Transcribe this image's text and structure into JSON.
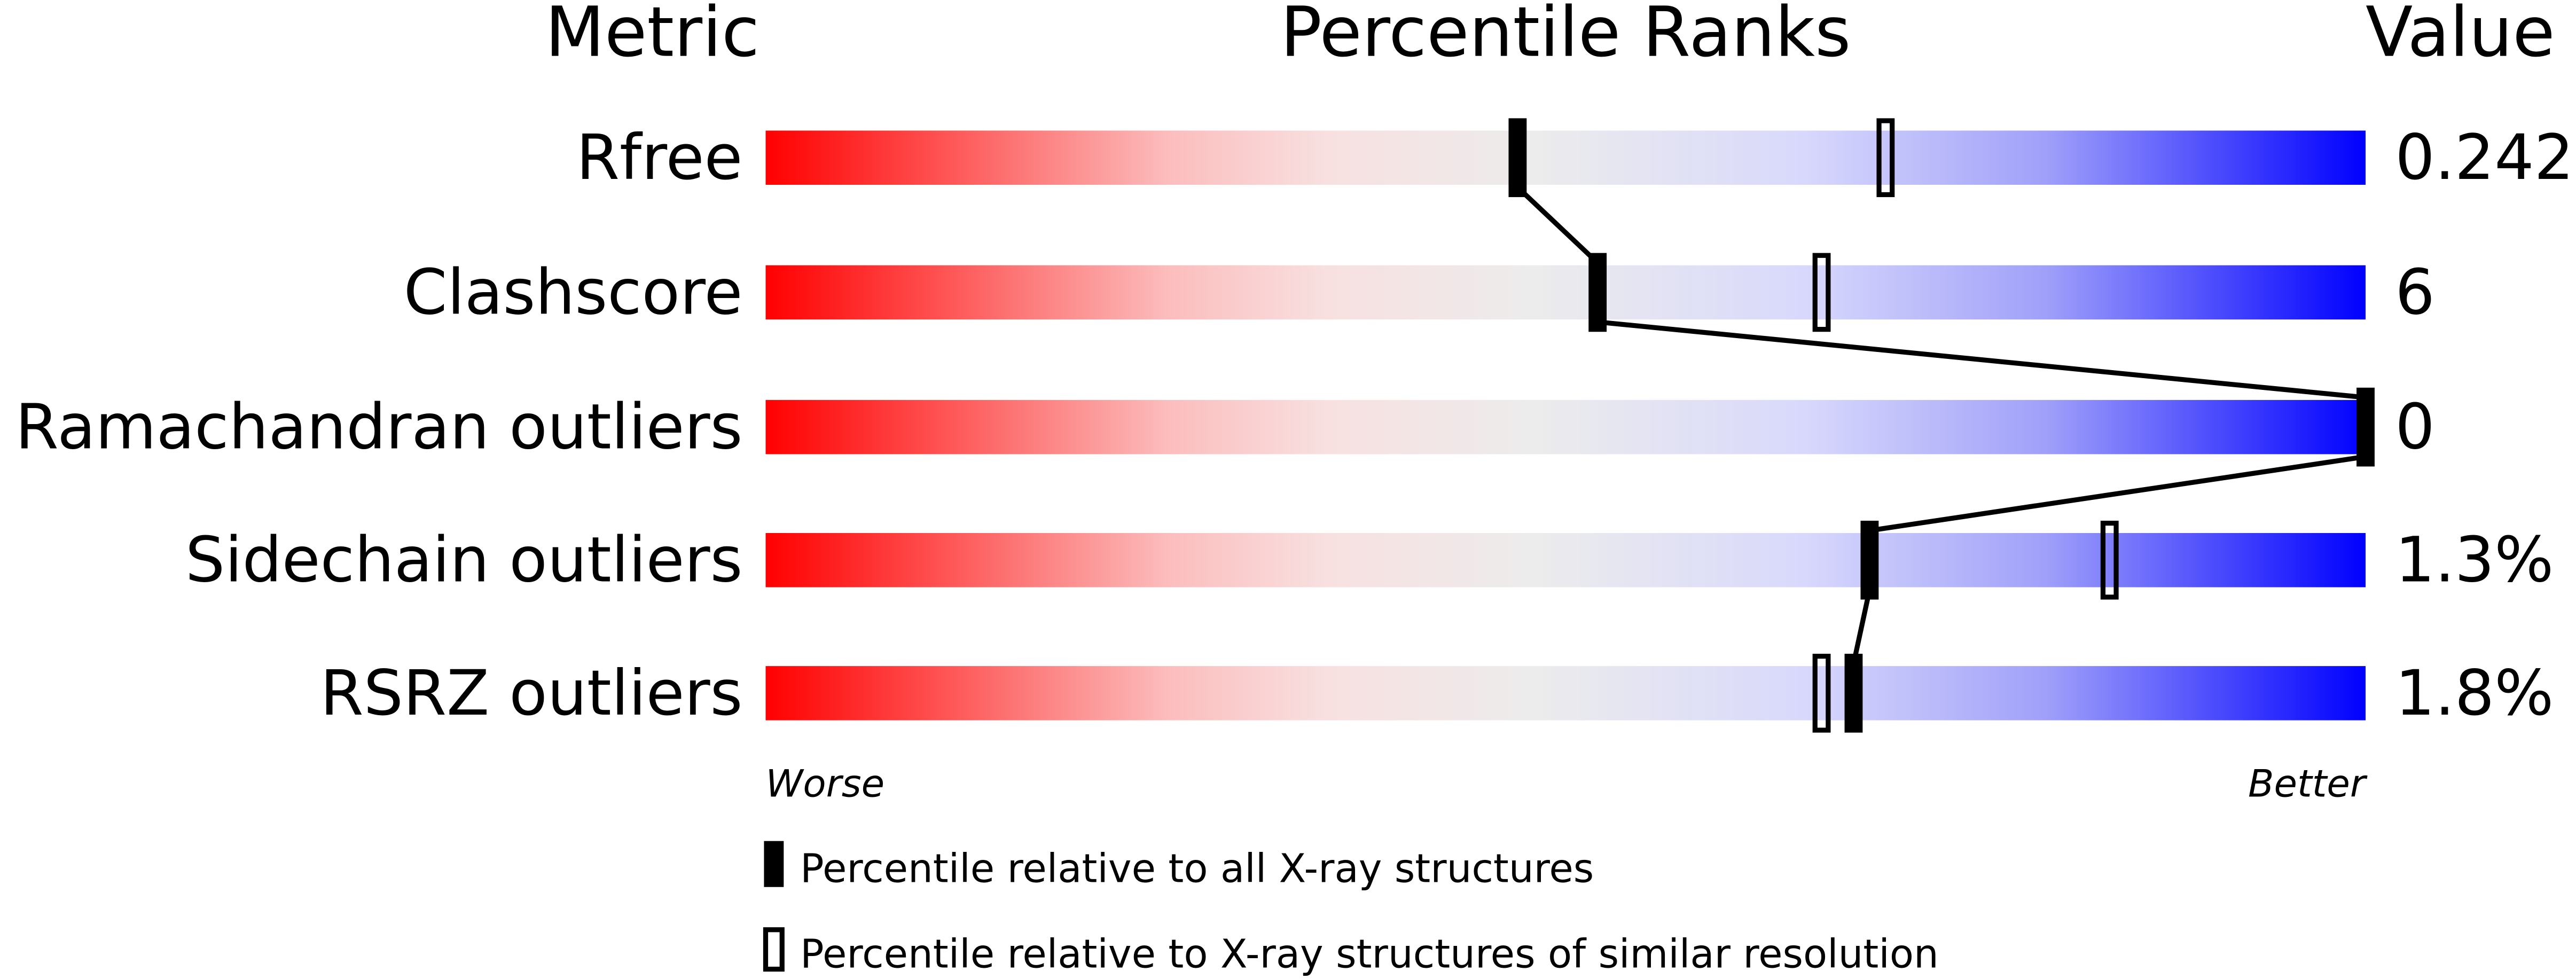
{
  "chart_data": {
    "type": "bar",
    "headers": {
      "metric": "Metric",
      "percentile": "Percentile Ranks",
      "value": "Value"
    },
    "xlim": [
      0,
      100
    ],
    "axis_labels": {
      "left": "Worse",
      "right": "Better"
    },
    "rows": [
      {
        "metric": "Rfree",
        "value": "0.242",
        "percentile_all": 47,
        "percentile_similar": 70
      },
      {
        "metric": "Clashscore",
        "value": "6",
        "percentile_all": 52,
        "percentile_similar": 66
      },
      {
        "metric": "Ramachandran outliers",
        "value": "0",
        "percentile_all": 100,
        "percentile_similar": null
      },
      {
        "metric": "Sidechain outliers",
        "value": "1.3%",
        "percentile_all": 69,
        "percentile_similar": 84
      },
      {
        "metric": "RSRZ outliers",
        "value": "1.8%",
        "percentile_all": 68,
        "percentile_similar": 66
      }
    ],
    "legend": [
      {
        "label": "Percentile relative to all X-ray structures",
        "style": "filled"
      },
      {
        "label": "Percentile relative to X-ray structures of similar resolution",
        "style": "open"
      }
    ],
    "colors": {
      "worse": "#ff0000",
      "mid": "#eeeeee",
      "better": "#0000ff"
    }
  }
}
